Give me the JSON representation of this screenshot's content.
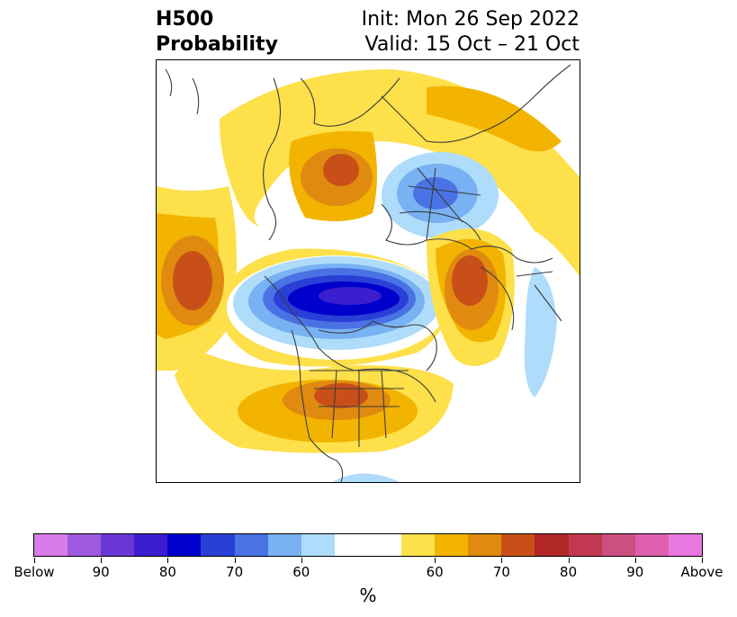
{
  "title": {
    "left_line1": "H500",
    "left_line2": "Probability",
    "right_line1": "Init: Mon 26 Sep 2022",
    "right_line2": "Valid: 15 Oct – 21 Oct"
  },
  "map": {
    "projection": "north polar stereographic",
    "field": "500 hPa height probability anomaly"
  },
  "colorbar": {
    "unit": "%",
    "tick_labels": [
      "Below",
      "90",
      "80",
      "70",
      "60",
      "60",
      "70",
      "80",
      "90",
      "Above"
    ],
    "colors": [
      "#d97be8",
      "#a05ae0",
      "#6a38d8",
      "#3b1ecf",
      "#0000cc",
      "#2a3fd6",
      "#4a72e4",
      "#78b2f2",
      "#aedcfa",
      "#ffffff",
      "#ffffff",
      "#fde04a",
      "#f2b400",
      "#e08a10",
      "#c85018",
      "#b22828",
      "#c23850",
      "#cc4f80",
      "#de5fb0",
      "#e878e0"
    ]
  }
}
